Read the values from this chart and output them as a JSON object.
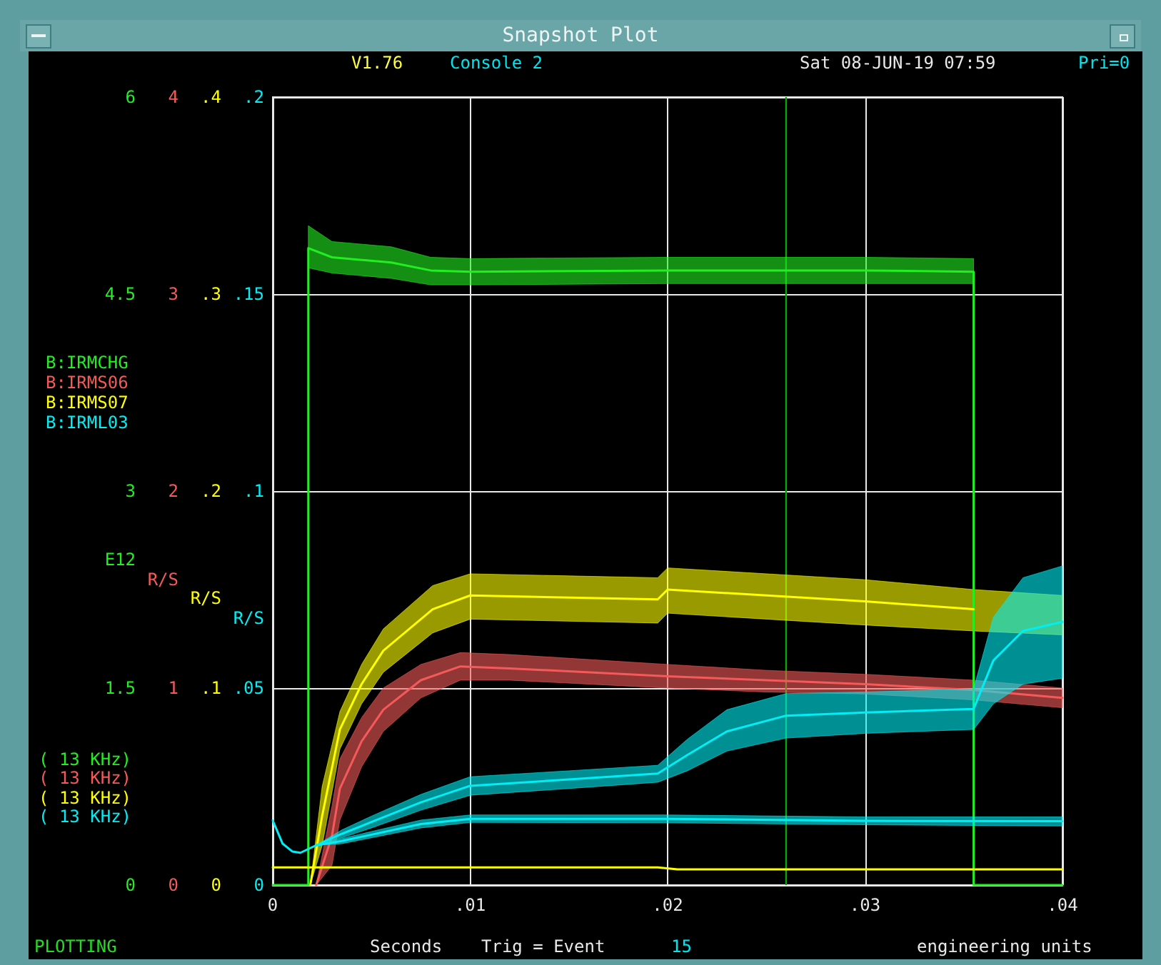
{
  "chart_data": [
    {
      "type": "line",
      "title": "Snapshot Plot",
      "xlabel": "Seconds",
      "ylabel": "E12",
      "y2label": "R/S",
      "y3label": "R/S",
      "annotations": [
        "V1.76",
        "Console 2",
        "Sat 08-JUN-19 07:59",
        "Pri=0",
        "( 13 KHz)",
        "( 13 KHz)",
        "( 13 KHz)",
        "PLOTTING",
        "Trig = Event",
        "15",
        "engineering units"
      ],
      "xlim": [
        0,
        0.04
      ],
      "xticks": [
        0,
        {
          "value": 0.01,
          "label": ".01"
        },
        {
          "value": 0.02,
          "label": ".02"
        },
        {
          "value": 0.03,
          "label": ".03"
        },
        {
          "value": 0.04,
          "label": ".04"
        }
      ],
      "ylim": [
        0,
        6
      ],
      "yticks": [
        0,
        1.5,
        3,
        4.5,
        6
      ],
      "y2lim": [
        0,
        4
      ],
      "y2ticks": [
        0,
        1,
        2,
        3,
        4
      ],
      "y3lim": [
        0,
        0.4
      ],
      "y3ticks": [
        0,
        {
          "value": 0.1,
          "label": ".1"
        },
        {
          "value": 0.2,
          "label": ".2"
        },
        {
          "value": 0.3,
          "label": ".3"
        },
        {
          "value": 0.4,
          "label": ".4"
        }
      ],
      "grid": true,
      "legend": "left",
      "marker": "none",
      "line_style": "solid",
      "ref_lines": [
        {
          "axis": "x",
          "value": 0.026,
          "color": "#00aa00"
        }
      ],
      "series": [
        {
          "name": "B:IRMCHG",
          "color": "#22ee22",
          "x": [
            0,
            0.0018,
            0.0018,
            0.003,
            0.006,
            0.008,
            0.01,
            0.02,
            0.03,
            0.0355,
            0.0355,
            0.04
          ],
          "values": [
            0,
            0,
            4.85,
            4.78,
            4.74,
            4.68,
            4.67,
            4.68,
            4.68,
            4.67,
            0,
            0
          ],
          "lower": [
            null,
            null,
            4.7,
            4.66,
            4.62,
            4.57,
            4.57,
            4.58,
            4.58,
            4.58,
            null,
            null
          ],
          "upper": [
            null,
            null,
            5.02,
            4.9,
            4.86,
            4.78,
            4.77,
            4.78,
            4.78,
            4.77,
            null,
            null
          ]
        },
        {
          "name": "B:IRMS06",
          "color": "#f55a5a",
          "axis": "y2",
          "x": [
            0.0022,
            0.003,
            0.0034,
            0.0045,
            0.0056,
            0.0075,
            0.0095,
            0.012,
            0.02,
            0.025,
            0.03,
            0.0355,
            0.04
          ],
          "values": [
            0,
            0.25,
            0.49,
            0.73,
            0.89,
            1.04,
            1.11,
            1.1,
            1.06,
            1.04,
            1.02,
            0.99,
            0.95
          ],
          "lower": [
            0,
            0.1,
            0.33,
            0.6,
            0.78,
            0.95,
            1.04,
            1.04,
            1.0,
            0.98,
            0.97,
            0.94,
            0.9
          ],
          "upper": [
            0,
            0.4,
            0.64,
            0.85,
            1.0,
            1.12,
            1.18,
            1.17,
            1.12,
            1.09,
            1.07,
            1.04,
            1.0
          ]
        },
        {
          "name": "B:IRMS07",
          "color": "#ffff00",
          "axis": "y3",
          "x": [
            0.0019,
            0.0025,
            0.0034,
            0.0045,
            0.0056,
            0.0081,
            0.01,
            0.0195,
            0.02,
            0.03,
            0.0355,
            0.04
          ],
          "values": [
            0,
            0.035,
            0.079,
            0.102,
            0.119,
            0.14,
            0.147,
            0.145,
            0.15,
            0.144,
            0.14,
            null
          ],
          "lower": [
            0,
            0.02,
            0.069,
            0.092,
            0.108,
            0.128,
            0.135,
            0.133,
            0.138,
            0.132,
            0.129,
            0.127
          ],
          "upper": [
            0,
            0.05,
            0.088,
            0.112,
            0.13,
            0.152,
            0.158,
            0.156,
            0.161,
            0.155,
            0.15,
            0.147
          ]
        },
        {
          "color": "#ffff00",
          "axis": "y3",
          "x": [
            0,
            0.0195,
            0.0205,
            0.04
          ],
          "values": [
            0.009,
            0.009,
            0.008,
            0.008
          ]
        }
      ]
    },
    {
      "type": "line",
      "ylabel": "R/S",
      "annotations": [
        "( 13 KHz)"
      ],
      "xlim": [
        0,
        0.04
      ],
      "ylim": [
        0,
        0.2
      ],
      "yticks": [
        0,
        {
          "value": 0.05,
          "label": ".05"
        },
        {
          "value": 0.1,
          "label": ".1"
        },
        {
          "value": 0.15,
          "label": ".15"
        },
        {
          "value": 0.2,
          "label": ".2"
        }
      ],
      "tick_labels": "y",
      "legend": "left",
      "marker": "none",
      "line_style": "solid",
      "series": [
        {
          "name": "B:IRML03",
          "color": "#00eef5",
          "x": [
            0.0022,
            0.0035,
            0.005,
            0.0075,
            0.01,
            0.015,
            0.0195,
            0.021,
            0.023,
            0.026,
            0.03,
            0.0355,
            0.0365,
            0.038,
            0.04
          ],
          "values": [
            0.0101,
            0.013,
            0.016,
            0.021,
            0.0252,
            0.0268,
            0.0283,
            0.033,
            0.039,
            0.043,
            0.0438,
            0.0447,
            0.057,
            0.0645,
            0.0668
          ],
          "lower": [
            0.0101,
            0.012,
            0.0145,
            0.019,
            0.0228,
            0.0245,
            0.0261,
            0.029,
            0.034,
            0.0373,
            0.0385,
            0.0395,
            0.046,
            0.051,
            0.0525
          ],
          "upper": [
            0.0101,
            0.014,
            0.0175,
            0.023,
            0.0275,
            0.029,
            0.0304,
            0.037,
            0.0445,
            0.0486,
            0.049,
            0.0498,
            0.068,
            0.078,
            0.081
          ]
        },
        {
          "color": "#00eef5",
          "x": [
            0,
            0.0005,
            0.001,
            0.0014,
            0.0022,
            0.0035,
            0.005,
            0.0075,
            0.01,
            0.02,
            0.03,
            0.04
          ],
          "values": [
            0.0164,
            0.0105,
            0.0085,
            0.0082,
            0.0101,
            0.0112,
            0.0128,
            0.0155,
            0.0168,
            0.0168,
            0.0163,
            0.0162
          ],
          "lower": [
            0.0164,
            0.0105,
            0.0085,
            0.0082,
            0.0101,
            0.0105,
            0.012,
            0.0145,
            0.0159,
            0.0158,
            0.0153,
            0.015
          ],
          "upper": [
            0.0164,
            0.0105,
            0.0085,
            0.0082,
            0.0101,
            0.0118,
            0.0136,
            0.0165,
            0.0178,
            0.0178,
            0.0173,
            0.0173
          ]
        }
      ]
    }
  ]
}
